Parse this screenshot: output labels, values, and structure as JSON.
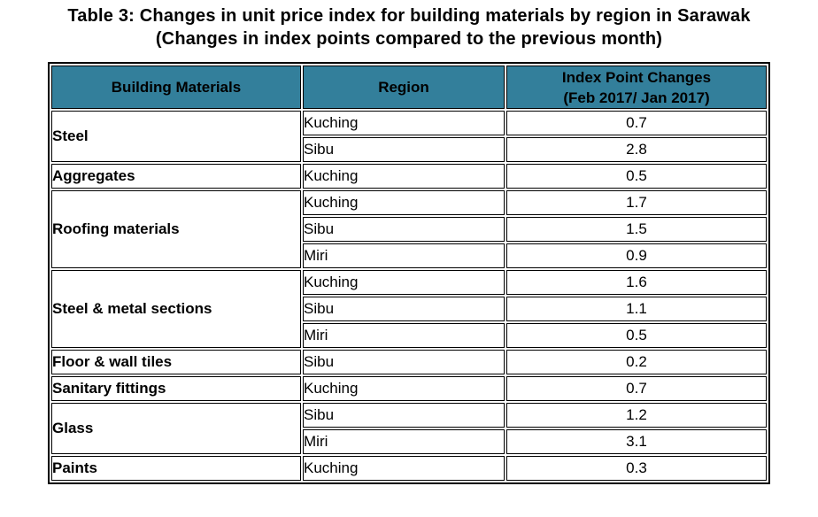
{
  "title": {
    "line1": "Table 3: Changes in unit price index for building materials by region in Sarawak",
    "line2": "(Changes in index points compared to the previous month)"
  },
  "table": {
    "columns": [
      {
        "label": "Building Materials"
      },
      {
        "label": "Region"
      },
      {
        "label_line1": "Index Point Changes",
        "label_line2": "(Feb 2017/ Jan 2017)"
      }
    ],
    "groups": [
      {
        "material": "Steel",
        "rows": [
          {
            "region": "Kuching",
            "value": "0.7"
          },
          {
            "region": "Sibu",
            "value": "2.8"
          }
        ]
      },
      {
        "material": "Aggregates",
        "rows": [
          {
            "region": "Kuching",
            "value": "0.5"
          }
        ]
      },
      {
        "material": "Roofing materials",
        "rows": [
          {
            "region": "Kuching",
            "value": "1.7"
          },
          {
            "region": "Sibu",
            "value": "1.5"
          },
          {
            "region": "Miri",
            "value": "0.9"
          }
        ]
      },
      {
        "material": "Steel & metal sections",
        "rows": [
          {
            "region": "Kuching",
            "value": "1.6"
          },
          {
            "region": "Sibu",
            "value": "1.1"
          },
          {
            "region": "Miri",
            "value": "0.5"
          }
        ]
      },
      {
        "material": "Floor & wall tiles",
        "rows": [
          {
            "region": "Sibu",
            "value": "0.2"
          }
        ]
      },
      {
        "material": "Sanitary fittings",
        "rows": [
          {
            "region": "Kuching",
            "value": "0.7"
          }
        ]
      },
      {
        "material": "Glass",
        "rows": [
          {
            "region": "Sibu",
            "value": "1.2"
          },
          {
            "region": "Miri",
            "value": "3.1"
          }
        ]
      },
      {
        "material": "Paints",
        "rows": [
          {
            "region": "Kuching",
            "value": "0.3"
          }
        ]
      }
    ]
  },
  "colors": {
    "header_bg": "#337F9B",
    "border": "#000000",
    "text": "#000000",
    "background": "#FFFFFF"
  }
}
